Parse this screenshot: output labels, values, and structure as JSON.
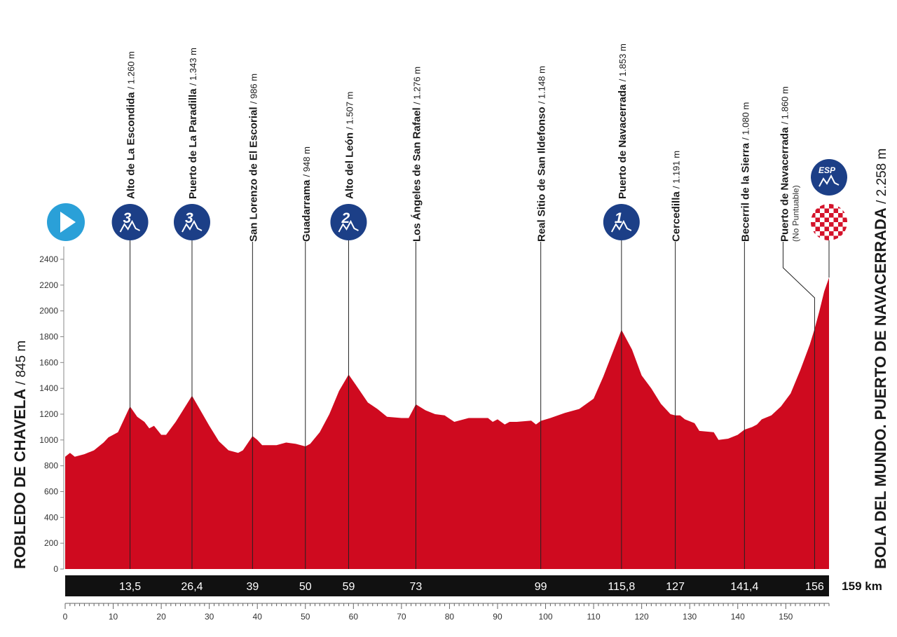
{
  "chart_data": {
    "type": "area",
    "start": {
      "name": "ROBLEDO DE CHAVELA",
      "elevation": "/ 845 m"
    },
    "finish": {
      "name": "BOLA DEL MUNDO. PUERTO DE NAVACERRADA",
      "elevation": "/ 2.258 m",
      "badge": "ESP"
    },
    "total_distance": "159 km",
    "xlim": [
      0,
      159
    ],
    "ylim": [
      0,
      2500
    ],
    "x_ticks": [
      0,
      10,
      20,
      30,
      40,
      50,
      60,
      70,
      80,
      90,
      100,
      110,
      120,
      130,
      140,
      150
    ],
    "y_ticks": [
      0,
      200,
      400,
      600,
      800,
      1000,
      1200,
      1400,
      1600,
      1800,
      2000,
      2200,
      2400
    ],
    "waypoints": [
      {
        "km": 13.5,
        "km_label": "13,5",
        "name": "Alto de La Escondida",
        "elev": "/ 1.260 m",
        "category": "3"
      },
      {
        "km": 26.4,
        "km_label": "26,4",
        "name": "Puerto de La Paradilla",
        "elev": "/ 1.343 m",
        "category": "3"
      },
      {
        "km": 39,
        "km_label": "39",
        "name": "San Lorenzo de El Escorial",
        "elev": "/ 986 m",
        "category": ""
      },
      {
        "km": 50,
        "km_label": "50",
        "name": "Guadarrama",
        "elev": "/ 948 m",
        "category": ""
      },
      {
        "km": 59,
        "km_label": "59",
        "name": "Alto del León",
        "elev": "/ 1.507 m",
        "category": "2"
      },
      {
        "km": 73,
        "km_label": "73",
        "name": "Los Ángeles de San Rafael",
        "elev": "/ 1.276 m",
        "category": ""
      },
      {
        "km": 99,
        "km_label": "99",
        "name": "Real Sitio de San Ildefonso",
        "elev": "/ 1.148 m",
        "category": ""
      },
      {
        "km": 115.8,
        "km_label": "115,8",
        "name": "Puerto de Navacerrada",
        "elev": "/ 1.853 m",
        "category": "1"
      },
      {
        "km": 127,
        "km_label": "127",
        "name": "Cercedilla",
        "elev": "/ 1.191 m",
        "category": ""
      },
      {
        "km": 141.4,
        "km_label": "141,4",
        "name": "Becerril de la Sierra",
        "elev": "/ 1.080 m",
        "category": ""
      },
      {
        "km": 156,
        "km_label": "156",
        "name": "Puerto de Navacerrada",
        "elev": "/ 1.860 m",
        "category": "",
        "note": "(No Puntuable)"
      }
    ],
    "profile": [
      [
        0,
        870
      ],
      [
        1,
        900
      ],
      [
        2,
        870
      ],
      [
        4,
        890
      ],
      [
        6,
        920
      ],
      [
        8,
        980
      ],
      [
        9,
        1020
      ],
      [
        11,
        1060
      ],
      [
        13.5,
        1260
      ],
      [
        15,
        1180
      ],
      [
        16.5,
        1140
      ],
      [
        17.5,
        1090
      ],
      [
        18.5,
        1110
      ],
      [
        20,
        1040
      ],
      [
        21,
        1040
      ],
      [
        23,
        1140
      ],
      [
        26.4,
        1343
      ],
      [
        28,
        1240
      ],
      [
        30,
        1110
      ],
      [
        32,
        990
      ],
      [
        34,
        920
      ],
      [
        36,
        900
      ],
      [
        37,
        920
      ],
      [
        39,
        1030
      ],
      [
        40,
        1000
      ],
      [
        41,
        960
      ],
      [
        44,
        960
      ],
      [
        46,
        980
      ],
      [
        48,
        970
      ],
      [
        50,
        950
      ],
      [
        51,
        970
      ],
      [
        53,
        1060
      ],
      [
        55,
        1200
      ],
      [
        57,
        1380
      ],
      [
        59,
        1507
      ],
      [
        61,
        1400
      ],
      [
        63,
        1290
      ],
      [
        65,
        1240
      ],
      [
        67,
        1180
      ],
      [
        70,
        1170
      ],
      [
        71.5,
        1170
      ],
      [
        73,
        1276
      ],
      [
        75,
        1230
      ],
      [
        77,
        1200
      ],
      [
        79,
        1190
      ],
      [
        81,
        1140
      ],
      [
        84,
        1170
      ],
      [
        88,
        1170
      ],
      [
        89,
        1140
      ],
      [
        90,
        1160
      ],
      [
        91.5,
        1120
      ],
      [
        92.5,
        1140
      ],
      [
        94,
        1140
      ],
      [
        97,
        1150
      ],
      [
        98,
        1120
      ],
      [
        99,
        1148
      ],
      [
        101,
        1170
      ],
      [
        104,
        1210
      ],
      [
        107,
        1240
      ],
      [
        110,
        1320
      ],
      [
        112,
        1490
      ],
      [
        115.8,
        1853
      ],
      [
        118,
        1700
      ],
      [
        120,
        1500
      ],
      [
        122,
        1400
      ],
      [
        124,
        1280
      ],
      [
        126,
        1200
      ],
      [
        127,
        1191
      ],
      [
        128,
        1190
      ],
      [
        129,
        1160
      ],
      [
        131,
        1130
      ],
      [
        132,
        1070
      ],
      [
        135,
        1060
      ],
      [
        136,
        1000
      ],
      [
        138,
        1010
      ],
      [
        140,
        1040
      ],
      [
        141.4,
        1080
      ],
      [
        143,
        1100
      ],
      [
        144,
        1120
      ],
      [
        145,
        1160
      ],
      [
        147,
        1190
      ],
      [
        149,
        1260
      ],
      [
        151,
        1360
      ],
      [
        153,
        1540
      ],
      [
        155,
        1740
      ],
      [
        156,
        1860
      ],
      [
        157,
        2000
      ],
      [
        158,
        2150
      ],
      [
        159,
        2258
      ]
    ],
    "colors": {
      "profile_fill": "#cf0a1f",
      "badge": "#1c3f87",
      "start_badge": "#2aa0d8",
      "label_text": "#1a1a1a"
    }
  }
}
